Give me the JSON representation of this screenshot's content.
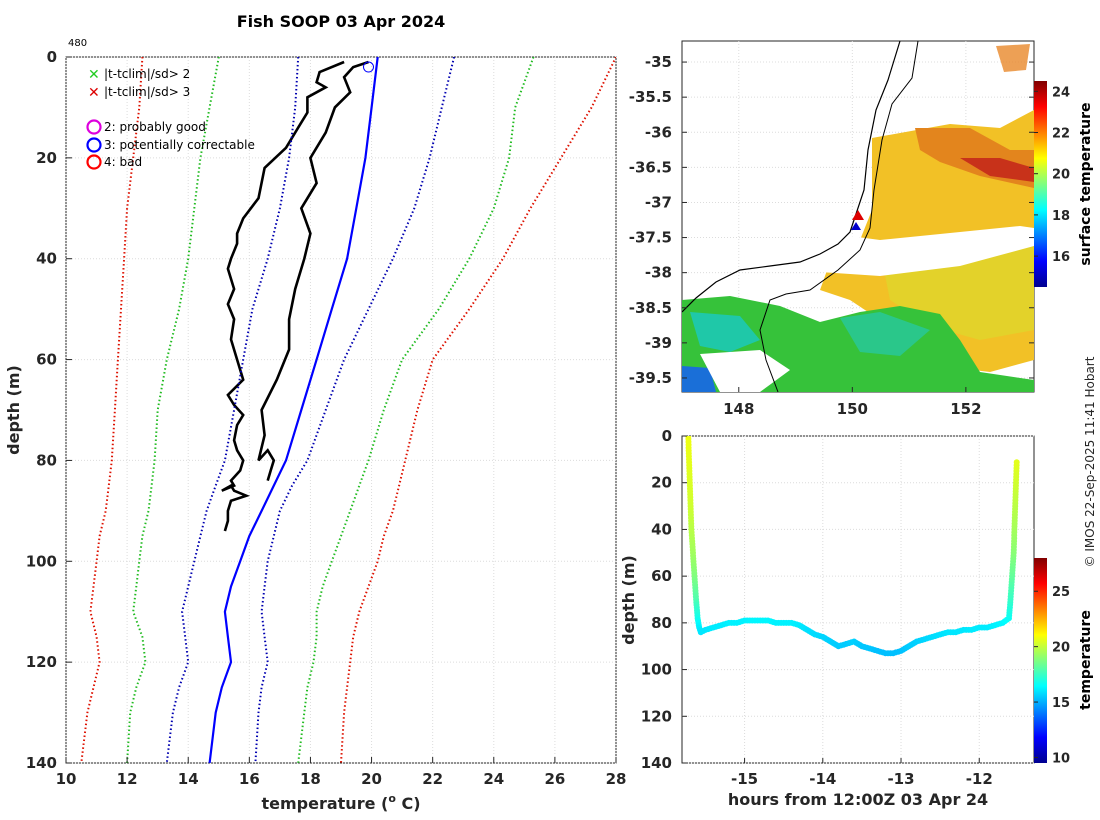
{
  "title": "Fish SOOP 03 Apr 2024",
  "cruise_id": "480",
  "credit": "© IMOS 22-Sep-2025 11:41 Hobart",
  "legend": {
    "flag_green": "|t-tclim|/sd> 2",
    "flag_red": "|t-tclim|/sd> 3",
    "qc2": "2: probably good",
    "qc3": "3: potentially correctable",
    "qc4": "4: bad"
  },
  "colors": {
    "profile": "#000000",
    "clim_mean": "#0000ff",
    "sd1": "#0000b0",
    "sd2": "#22bb22",
    "sd3": "#dd1100",
    "qc2": "#dd00dd",
    "qc3": "#0000ff",
    "qc4": "#ff0000"
  },
  "chart_data": [
    {
      "type": "line",
      "name": "profile",
      "xlabel": "temperature (",
      "xlabel_sup": "o",
      "xlabel_end": " C)",
      "ylabel": "depth (m)",
      "xlim": [
        10,
        28
      ],
      "ylim": [
        0,
        140
      ],
      "xticks": [
        "10",
        "12",
        "14",
        "16",
        "18",
        "20",
        "22",
        "24",
        "26",
        "28"
      ],
      "yticks": [
        "0",
        "20",
        "40",
        "60",
        "80",
        "100",
        "120",
        "140"
      ],
      "marker": {
        "temp": 19.9,
        "depth": 1
      },
      "series": [
        {
          "name": "profile down",
          "style": "solid",
          "color": "#000000",
          "temp": [
            19.1,
            18.3,
            18.2,
            18.5,
            17.9,
            17.9,
            17.6,
            17.2,
            16.5,
            16.3,
            15.8,
            15.6,
            15.6,
            15.4,
            15.3,
            15.5,
            15.3,
            15.5,
            15.4,
            15.6,
            15.8,
            15.3,
            15.5,
            15.8,
            15.6,
            15.5,
            15.6,
            15.8,
            15.7,
            15.4,
            15.5,
            15.1,
            15.4,
            15.5,
            15.9,
            15.4,
            15.3,
            15.3,
            15.2
          ],
          "depth": [
            1,
            3,
            5,
            6,
            8,
            11,
            14,
            18,
            22,
            28,
            32,
            35,
            37,
            40,
            42,
            46,
            49,
            52,
            56,
            60,
            64,
            67,
            69,
            71,
            73,
            76,
            78,
            80,
            82,
            84,
            85,
            86,
            85,
            86,
            87,
            88,
            90,
            92,
            94
          ]
        },
        {
          "name": "profile up",
          "style": "solid",
          "color": "#000000",
          "temp": [
            16.6,
            16.7,
            16.8,
            16.6,
            16.3,
            16.5,
            16.4,
            16.9,
            17.3,
            17.3,
            17.5,
            17.8,
            18.0,
            17.7,
            18.2,
            18.0,
            18.5,
            18.8,
            19.3,
            19.1,
            19.4,
            19.9
          ],
          "depth": [
            84,
            82,
            80,
            78,
            80,
            75,
            70,
            64,
            58,
            52,
            46,
            40,
            35,
            30,
            25,
            20,
            15,
            10,
            7,
            4,
            2,
            1
          ]
        },
        {
          "name": "clim mean",
          "style": "solid",
          "color": "#0000ff",
          "temp": [
            20.2,
            20.0,
            19.8,
            19.5,
            19.2,
            18.7,
            18.2,
            17.7,
            17.2,
            16.8,
            16.4,
            16.0,
            15.7,
            15.4,
            15.2,
            15.3,
            15.4,
            15.1,
            14.9,
            14.7
          ],
          "depth": [
            0,
            10,
            20,
            30,
            40,
            50,
            60,
            70,
            80,
            85,
            90,
            95,
            100,
            105,
            110,
            115,
            120,
            125,
            130,
            140
          ]
        },
        {
          "name": "clim -1sd",
          "style": "dotted",
          "color": "#0000b0",
          "temp": [
            17.6,
            17.5,
            17.3,
            17.0,
            16.6,
            16.1,
            15.8,
            15.5,
            15.2,
            14.9,
            14.6,
            14.4,
            14.2,
            14.0,
            13.8,
            13.9,
            14.0,
            13.7,
            13.5,
            13.3
          ],
          "depth": [
            0,
            10,
            20,
            30,
            40,
            50,
            60,
            70,
            80,
            85,
            90,
            95,
            100,
            105,
            110,
            115,
            120,
            125,
            130,
            140
          ]
        },
        {
          "name": "clim +1sd",
          "style": "dotted",
          "color": "#0000b0",
          "temp": [
            22.7,
            22.3,
            21.9,
            21.4,
            20.7,
            19.9,
            19.1,
            18.5,
            17.9,
            17.4,
            17.0,
            16.8,
            16.6,
            16.5,
            16.4,
            16.5,
            16.6,
            16.4,
            16.3,
            16.2
          ],
          "depth": [
            0,
            10,
            20,
            30,
            40,
            50,
            60,
            70,
            80,
            85,
            90,
            95,
            100,
            105,
            110,
            115,
            120,
            125,
            130,
            140
          ]
        },
        {
          "name": "clim -2sd",
          "style": "dotted",
          "color": "#22bb22",
          "temp": [
            15.0,
            14.7,
            14.4,
            14.2,
            14.0,
            13.7,
            13.3,
            13.0,
            12.9,
            12.8,
            12.7,
            12.5,
            12.4,
            12.3,
            12.2,
            12.5,
            12.6,
            12.3,
            12.1,
            12.0
          ],
          "depth": [
            0,
            10,
            20,
            30,
            40,
            50,
            60,
            70,
            80,
            85,
            90,
            95,
            100,
            105,
            110,
            115,
            120,
            125,
            130,
            140
          ]
        },
        {
          "name": "clim +2sd",
          "style": "dotted",
          "color": "#22bb22",
          "temp": [
            25.3,
            24.7,
            24.5,
            24.0,
            23.2,
            22.2,
            21.0,
            20.4,
            19.9,
            19.6,
            19.3,
            19.0,
            18.7,
            18.4,
            18.2,
            18.2,
            18.1,
            17.9,
            17.8,
            17.6
          ],
          "depth": [
            0,
            10,
            20,
            30,
            40,
            50,
            60,
            70,
            80,
            85,
            90,
            95,
            100,
            105,
            110,
            115,
            120,
            125,
            130,
            140
          ]
        },
        {
          "name": "clim -3sd",
          "style": "dotted",
          "color": "#dd1100",
          "temp": [
            12.5,
            12.4,
            12.2,
            12.0,
            11.9,
            11.8,
            11.7,
            11.6,
            11.5,
            11.4,
            11.3,
            11.1,
            11.0,
            10.9,
            10.8,
            11.0,
            11.1,
            10.9,
            10.7,
            10.5
          ],
          "depth": [
            0,
            10,
            20,
            30,
            40,
            50,
            60,
            70,
            80,
            85,
            90,
            95,
            100,
            105,
            110,
            115,
            120,
            125,
            130,
            140
          ]
        },
        {
          "name": "clim +3sd",
          "style": "dotted",
          "color": "#dd1100",
          "temp": [
            28.0,
            27.2,
            26.2,
            25.2,
            24.3,
            23.2,
            22.0,
            21.5,
            21.1,
            20.9,
            20.7,
            20.4,
            20.2,
            19.9,
            19.6,
            19.4,
            19.3,
            19.2,
            19.1,
            19.0
          ],
          "depth": [
            0,
            10,
            20,
            30,
            40,
            50,
            60,
            70,
            80,
            85,
            90,
            95,
            100,
            105,
            110,
            115,
            120,
            125,
            130,
            140
          ]
        }
      ]
    },
    {
      "type": "heatmap",
      "name": "surface temperature map",
      "xlim": [
        147,
        153.2
      ],
      "ylim": [
        -39.7,
        -34.7
      ],
      "xticks": [
        "148",
        "150",
        "152"
      ],
      "yticks": [
        "-35",
        "-35.5",
        "-36",
        "-36.5",
        "-37",
        "-37.5",
        "-38",
        "-38.5",
        "-39",
        "-39.5"
      ],
      "colorbar": {
        "label": "surface temperature",
        "range": [
          14.5,
          24.5
        ],
        "ticks": [
          "16",
          "18",
          "20",
          "22",
          "24"
        ]
      },
      "station": {
        "lon": 150.1,
        "lat": -37.2
      }
    },
    {
      "type": "scatter",
      "name": "depth-time section",
      "xlabel": "hours from 12:00Z 03 Apr 24",
      "ylabel": "depth (m)",
      "xlim": [
        -15.8,
        -11.3
      ],
      "ylim": [
        0,
        140
      ],
      "xticks": [
        "-15",
        "-14",
        "-13",
        "-12"
      ],
      "yticks": [
        "0",
        "20",
        "40",
        "60",
        "80",
        "100",
        "120",
        "140"
      ],
      "colorbar": {
        "label": "temperature",
        "range": [
          9.5,
          28
        ],
        "ticks": [
          "10",
          "15",
          "20",
          "25"
        ]
      },
      "x": [
        -15.72,
        -15.71,
        -15.7,
        -15.69,
        -15.68,
        -15.66,
        -15.64,
        -15.62,
        -15.6,
        -15.58,
        -15.56,
        -15.5,
        -15.4,
        -15.3,
        -15.2,
        -15.1,
        -15.0,
        -14.9,
        -14.8,
        -14.7,
        -14.6,
        -14.5,
        -14.4,
        -14.3,
        -14.2,
        -14.1,
        -14.0,
        -13.9,
        -13.8,
        -13.7,
        -13.6,
        -13.5,
        -13.4,
        -13.3,
        -13.2,
        -13.1,
        -13.0,
        -12.9,
        -12.8,
        -12.7,
        -12.6,
        -12.5,
        -12.4,
        -12.3,
        -12.2,
        -12.1,
        -12.0,
        -11.9,
        -11.8,
        -11.7,
        -11.62,
        -11.6,
        -11.58,
        -11.56,
        -11.55,
        -11.54,
        -11.53,
        -11.52
      ],
      "y": [
        0,
        10,
        20,
        30,
        40,
        50,
        60,
        70,
        78,
        82,
        84,
        83,
        82,
        81,
        80,
        80,
        79,
        79,
        79,
        79,
        80,
        80,
        80,
        81,
        83,
        85,
        86,
        88,
        90,
        89,
        88,
        90,
        91,
        92,
        93,
        93,
        92,
        90,
        88,
        87,
        86,
        85,
        84,
        84,
        83,
        83,
        82,
        82,
        81,
        80,
        78,
        70,
        60,
        50,
        40,
        30,
        20,
        10
      ],
      "temp": [
        20.8,
        20.6,
        20.4,
        20.2,
        19.8,
        19.4,
        18.8,
        17.9,
        16.8,
        16.2,
        16.0,
        16.0,
        16.1,
        16.1,
        16.2,
        16.2,
        16.2,
        16.3,
        16.3,
        16.3,
        16.2,
        16.2,
        16.2,
        16.1,
        15.9,
        15.8,
        15.7,
        15.6,
        15.5,
        15.5,
        15.6,
        15.4,
        15.4,
        15.3,
        15.3,
        15.3,
        15.3,
        15.5,
        15.6,
        15.7,
        15.8,
        15.9,
        16.0,
        16.0,
        16.0,
        16.1,
        16.1,
        16.1,
        16.2,
        16.3,
        16.6,
        17.4,
        18.2,
        18.9,
        19.4,
        19.8,
        20.2,
        20.6
      ]
    }
  ]
}
